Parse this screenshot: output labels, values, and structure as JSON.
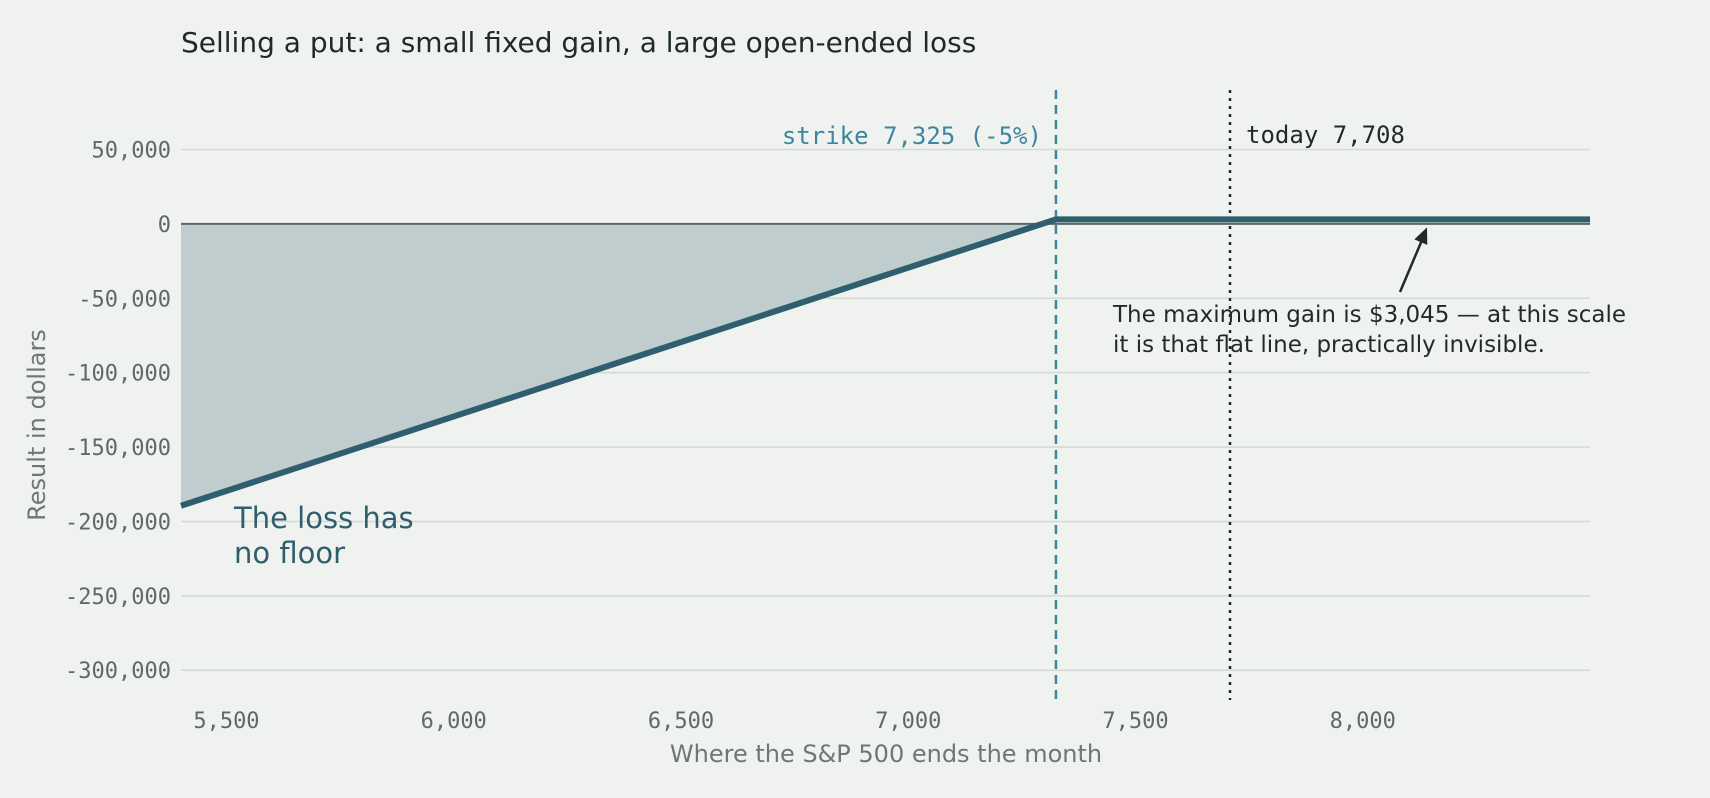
{
  "chart_data": {
    "type": "line",
    "title": "Selling a put: a small fixed gain, a large open-ended loss",
    "xlabel": "Where the S&P 500 ends the month",
    "ylabel": "Result in dollars",
    "xlim": [
      5400,
      8500
    ],
    "ylim": [
      -320000,
      90000
    ],
    "x_ticks": [
      5500,
      6000,
      6500,
      7000,
      7500,
      8000
    ],
    "x_tick_labels": [
      "5,500",
      "6,000",
      "6,500",
      "7,000",
      "7,500",
      "8,000"
    ],
    "y_ticks": [
      50000,
      0,
      -50000,
      -100000,
      -150000,
      -200000,
      -250000,
      -300000
    ],
    "y_tick_labels": [
      "50,000",
      "0",
      "-50,000",
      "-100,000",
      "-150,000",
      "-200,000",
      "-250,000",
      "-300,000"
    ],
    "grid": true,
    "series": [
      {
        "x": [
          5400,
          7325,
          8500
        ],
        "y": [
          -189450,
          3045,
          3045
        ]
      }
    ],
    "strike": {
      "x": 7325,
      "label": "strike 7,325 (-5%)"
    },
    "today": {
      "x": 7708,
      "label": "today 7,708"
    },
    "annotations": {
      "loss_line1": "The loss has",
      "loss_line2": "no floor",
      "gain_line1": "The maximum gain is $3,045 — at this scale",
      "gain_line2": "it is that flat line, practically invisible."
    },
    "colors": {
      "line": "#2f5f6e",
      "fill": "#bfcdce",
      "strike": "#3d86a0",
      "today": "#1f2a2b",
      "grid": "#d3d8d5"
    }
  }
}
